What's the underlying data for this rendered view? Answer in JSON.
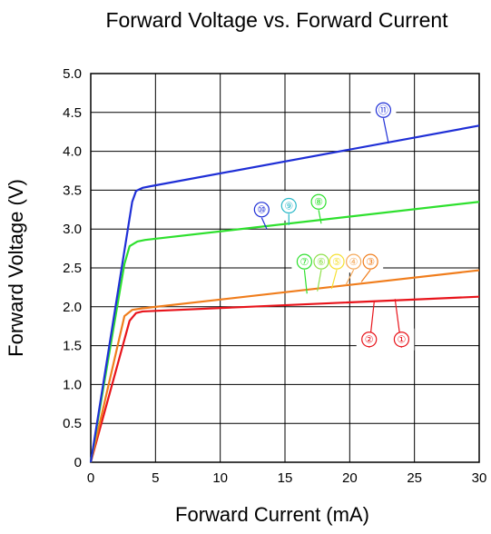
{
  "chart_data": {
    "type": "line",
    "title": "Forward Voltage vs. Forward Current",
    "xlabel": "Forward Current (mA)",
    "ylabel": "Forward Voltage (V)",
    "xlim": [
      0,
      30
    ],
    "ylim": [
      0,
      5.0
    ],
    "xticks": [
      "0",
      "5",
      "10",
      "15",
      "20",
      "25",
      "30"
    ],
    "yticks": [
      "0",
      "0.5",
      "1.0",
      "1.5",
      "2.0",
      "2.5",
      "3.0",
      "3.5",
      "4.0",
      "4.5",
      "5.0"
    ],
    "grid": true,
    "series": [
      {
        "color": "#e8141b",
        "x": [
          0,
          3.0,
          3.5,
          4.0,
          30
        ],
        "y": [
          0,
          1.82,
          1.92,
          1.94,
          2.13
        ]
      },
      {
        "color": "#f07d1c",
        "x": [
          0,
          2.6,
          3.2,
          4.0,
          30
        ],
        "y": [
          0,
          1.88,
          1.96,
          1.98,
          2.47
        ]
      },
      {
        "color": "#2ee02e",
        "x": [
          0,
          2.6,
          3.0,
          3.6,
          4.2,
          30
        ],
        "y": [
          0,
          2.55,
          2.78,
          2.84,
          2.86,
          3.35
        ]
      },
      {
        "color": "#1f2fd6",
        "x": [
          0,
          3.2,
          3.5,
          4.0,
          4.6,
          30
        ],
        "y": [
          0,
          3.35,
          3.49,
          3.53,
          3.55,
          4.33
        ]
      }
    ],
    "markers": [
      {
        "label": "①",
        "color": "#e8141b",
        "x": 24.0,
        "y": 1.58,
        "lx": 23.5,
        "ly": 2.1
      },
      {
        "label": "②",
        "color": "#e8141b",
        "x": 21.5,
        "y": 1.58,
        "lx": 21.9,
        "ly": 2.08
      },
      {
        "label": "③",
        "color": "#f07d1c",
        "x": 21.6,
        "y": 2.58,
        "lx": 20.9,
        "ly": 2.32
      },
      {
        "label": "④",
        "color": "#f5a95a",
        "x": 20.3,
        "y": 2.58,
        "lx": 19.7,
        "ly": 2.28
      },
      {
        "label": "⑤",
        "color": "#f5e030",
        "x": 19.0,
        "y": 2.58,
        "lx": 18.6,
        "ly": 2.23
      },
      {
        "label": "⑥",
        "color": "#8ee04a",
        "x": 17.8,
        "y": 2.58,
        "lx": 17.5,
        "ly": 2.2
      },
      {
        "label": "⑦",
        "color": "#2ee02e",
        "x": 16.5,
        "y": 2.58,
        "lx": 16.7,
        "ly": 2.17
      },
      {
        "label": "⑧",
        "color": "#2ee02e",
        "x": 17.6,
        "y": 3.35,
        "lx": 17.8,
        "ly": 3.07
      },
      {
        "label": "⑨",
        "color": "#2ab8c8",
        "x": 15.3,
        "y": 3.3,
        "lx": 15.3,
        "ly": 3.05
      },
      {
        "label": "⑩",
        "color": "#1f2fd6",
        "x": 13.2,
        "y": 3.25,
        "lx": 13.6,
        "ly": 3.0
      },
      {
        "label": "⑪",
        "color": "#1f2fd6",
        "x": 22.6,
        "y": 4.53,
        "lx": 23.0,
        "ly": 4.1
      }
    ]
  }
}
